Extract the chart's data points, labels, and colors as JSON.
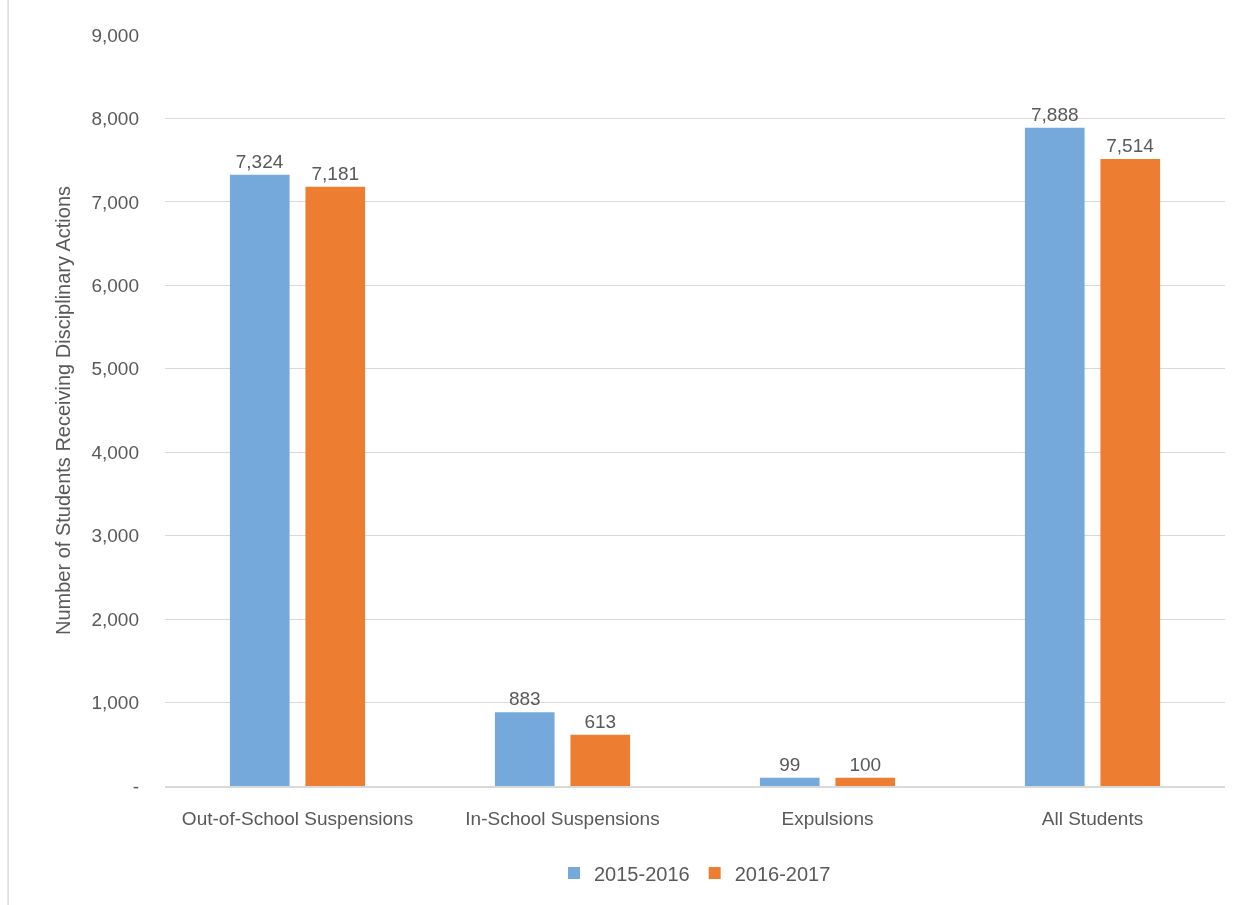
{
  "chart_data": {
    "type": "bar",
    "ylabel": "Number of Students Receiving Disciplinary Actions",
    "categories": [
      "Out-of-School Suspensions",
      "In-School Suspensions",
      "Expulsions",
      "All Students"
    ],
    "series": [
      {
        "name": "2015-2016",
        "color": "#75a8db",
        "values": [
          7324,
          883,
          99,
          7888
        ],
        "value_labels": [
          "7,324",
          "883",
          "99",
          "7,888"
        ]
      },
      {
        "name": "2016-2017",
        "color": "#ed7d31",
        "values": [
          7181,
          613,
          100,
          7514
        ],
        "value_labels": [
          "7,181",
          "613",
          "100",
          "7,514"
        ]
      }
    ],
    "ylim": [
      0,
      9000
    ],
    "yticks": [
      {
        "value": 0,
        "label": "-"
      },
      {
        "value": 1000,
        "label": "1,000"
      },
      {
        "value": 2000,
        "label": "2,000"
      },
      {
        "value": 3000,
        "label": "3,000"
      },
      {
        "value": 4000,
        "label": "4,000"
      },
      {
        "value": 5000,
        "label": "5,000"
      },
      {
        "value": 6000,
        "label": "6,000"
      },
      {
        "value": 7000,
        "label": "7,000"
      },
      {
        "value": 8000,
        "label": "8,000"
      },
      {
        "value": 9000,
        "label": "9,000"
      }
    ],
    "grid": "y",
    "legend": "bottom"
  }
}
